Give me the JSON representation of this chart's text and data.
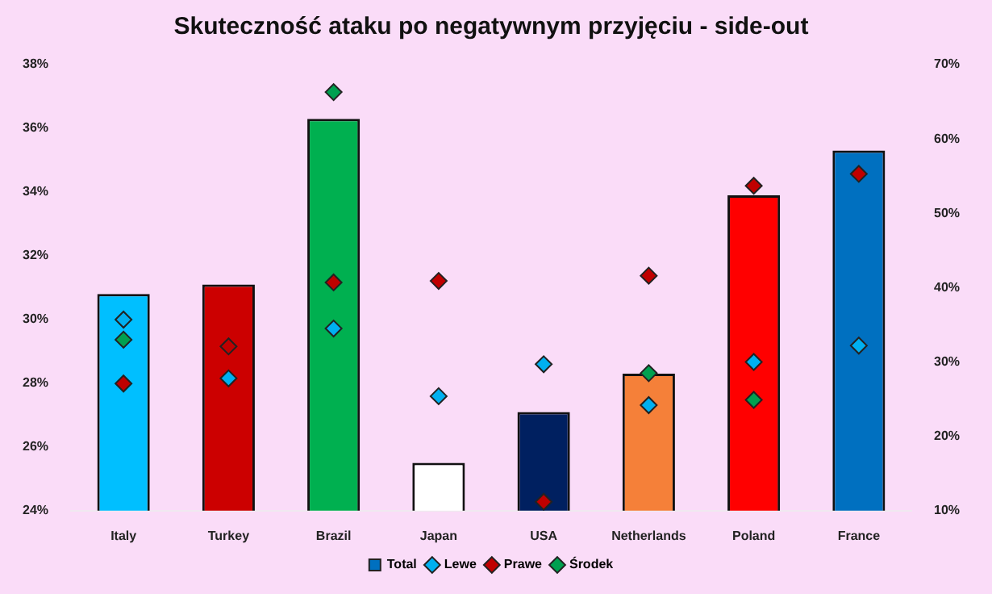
{
  "chart_data": {
    "type": "bar",
    "title": "Skuteczność ataku po negatywnym przyjęciu - side-out",
    "categories": [
      "Italy",
      "Turkey",
      "Brazil",
      "Japan",
      "USA",
      "Netherlands",
      "Poland",
      "France"
    ],
    "series": [
      {
        "name": "Total",
        "color": "#0070c0",
        "colors": [
          "#00bfff",
          "#cc0000",
          "#00b050",
          "#ffffff",
          "#002060",
          "#f58039",
          "#ff0000",
          "#0070c0"
        ],
        "values": [
          30.8,
          31.1,
          36.3,
          25.5,
          27.1,
          28.3,
          33.9,
          35.3
        ]
      },
      {
        "name": "Lewe",
        "type": "scatter",
        "axis": "y2",
        "marker": "diamond",
        "color": "#00b0f0",
        "values": [
          35.7,
          27.8,
          34.5,
          25.4,
          29.7,
          24.2,
          30.0,
          32.2
        ]
      },
      {
        "name": "Prawe",
        "type": "scatter",
        "axis": "y2",
        "marker": "diamond",
        "color": "#c00000",
        "values": [
          27.1,
          32.1,
          40.7,
          40.9,
          11.2,
          41.6,
          53.7,
          55.3
        ]
      },
      {
        "name": "Środek",
        "type": "scatter",
        "axis": "y2",
        "marker": "diamond",
        "color": "#00a050",
        "values": [
          33.0,
          null,
          66.3,
          null,
          null,
          28.5,
          24.9,
          null
        ]
      }
    ],
    "ylim": [
      24,
      38
    ],
    "yticks": [
      {
        "value": 24,
        "label": "24%"
      },
      {
        "value": 26,
        "label": "26%"
      },
      {
        "value": 28,
        "label": "28%"
      },
      {
        "value": 30,
        "label": "30%"
      },
      {
        "value": 32,
        "label": "32%"
      },
      {
        "value": 34,
        "label": "34%"
      },
      {
        "value": 36,
        "label": "36%"
      },
      {
        "value": 38,
        "label": "38%"
      }
    ],
    "y2lim": [
      10,
      70
    ],
    "y2ticks": [
      {
        "value": 10,
        "label": "10%"
      },
      {
        "value": 20,
        "label": "20%"
      },
      {
        "value": 30,
        "label": "30%"
      },
      {
        "value": 40,
        "label": "40%"
      },
      {
        "value": 50,
        "label": "50%"
      },
      {
        "value": 60,
        "label": "60%"
      },
      {
        "value": 70,
        "label": "70%"
      }
    ],
    "grid": false,
    "legend": "bottom"
  }
}
